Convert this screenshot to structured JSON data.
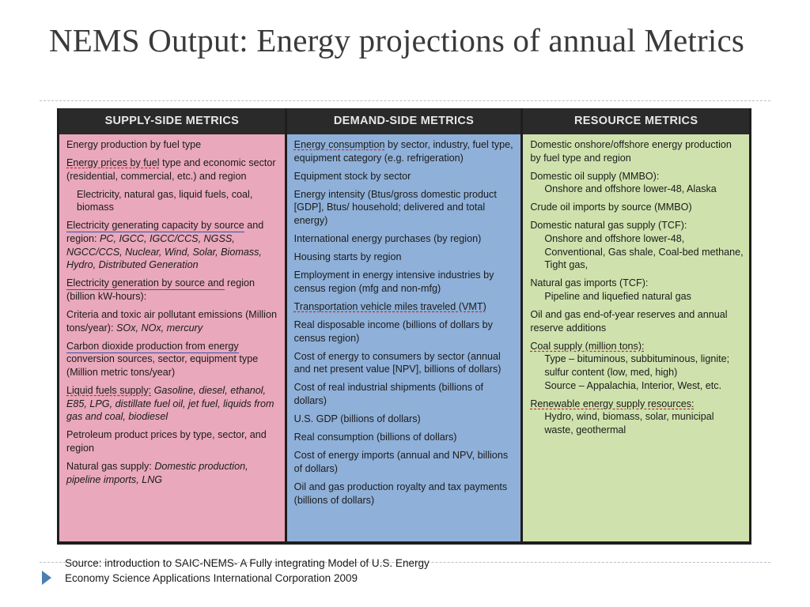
{
  "slide": {
    "title": "NEMS Output: Energy projections of annual Metrics",
    "source_line1": "Source:  introduction to SAIC-NEMS- A Fully integrating Model of U.S. Energy",
    "source_line2": "Economy Science Applications International Corporation 2009"
  },
  "table": {
    "supply": {
      "header": "SUPPLY-SIDE METRICS",
      "items": [
        {
          "text": "Energy production by fuel type"
        },
        {
          "u": "Energy prices by fuel",
          "text": " type and economic sector (residential, commercial, etc.) and region"
        },
        {
          "sub": "Electricity, natural gas, liquid fuels, coal, biomass"
        },
        {
          "u": "Electricity generating capacity by source",
          "text": " and region: ",
          "italic": "PC, IGCC, IGCC/CCS, NGSS, NGCC/CCS, Nuclear, Wind, Solar, Biomass, Hydro, Distributed Generation"
        },
        {
          "u": "Electricity generation by source and",
          "text": " region (billion kW-hours):"
        },
        {
          "text": "Criteria and toxic air pollutant emissions (Million tons/year): ",
          "italic": "SOx, NOx, mercury"
        },
        {
          "u": "Carbon dioxide production from energy",
          "text": " conversion sources, sector, equipment type (Million metric tons/year)"
        },
        {
          "u": "Liquid fuels supply:",
          "text": " ",
          "italic": "Gasoline, diesel, ethanol, E85, LPG, distillate fuel oil, jet fuel, liquids from gas and coal, biodiesel"
        },
        {
          "text": "Petroleum product prices by type, sector, and region"
        },
        {
          "text": "Natural gas supply: ",
          "italic": "Domestic production, pipeline imports, LNG"
        }
      ]
    },
    "demand": {
      "header": "DEMAND-SIDE METRICS",
      "items": [
        {
          "u": "Energy consumption",
          "text": " by sector, industry, fuel type, equipment category (e.g. refrigeration)"
        },
        {
          "text": "Equipment stock by sector"
        },
        {
          "text": "Energy intensity (Btus/gross domestic product [GDP], Btus/ household; delivered and total energy)"
        },
        {
          "text": "International energy purchases (by region)"
        },
        {
          "text": "Housing starts by region"
        },
        {
          "text": "Employment in energy intensive industries by census region (mfg and non-mfg)"
        },
        {
          "u": "Transportation vehicle miles traveled (VMT)"
        },
        {
          "text": "Real disposable income (billions of dollars by census region)"
        },
        {
          "text": "Cost of energy to consumers by sector (annual and net present value [NPV], billions of dollars)"
        },
        {
          "text": "Cost of real industrial shipments (billions of dollars)"
        },
        {
          "text": "U.S. GDP (billions of dollars)"
        },
        {
          "text": "Real consumption (billions of dollars)"
        },
        {
          "text": "Cost of energy imports (annual and NPV, billions of dollars)"
        },
        {
          "text": "Oil and gas production royalty and tax payments (billions of dollars)"
        }
      ]
    },
    "resource": {
      "header": "RESOURCE METRICS",
      "items": [
        {
          "text": "Domestic onshore/offshore energy production by fuel type and region"
        },
        {
          "text": "Domestic oil supply (MMBO):",
          "subs": [
            "Onshore and offshore lower-48, Alaska"
          ]
        },
        {
          "text": "Crude oil imports by source (MMBO)"
        },
        {
          "text": "Domestic natural gas supply (TCF):",
          "subs": [
            "Onshore and offshore lower-48, Conventional, Gas shale, Coal-bed methane, Tight gas,"
          ]
        },
        {
          "text": "Natural gas imports (TCF):",
          "subs": [
            "Pipeline and liquefied natural gas"
          ]
        },
        {
          "text": "Oil and gas end-of-year reserves and annual reserve additions"
        },
        {
          "u": "Coal supply (million tons):",
          "subs": [
            "Type – bituminous, subbituminous, lignite; sulfur content (low, med, high)",
            "Source – Appalachia, Interior, West, etc."
          ]
        },
        {
          "u": "Renewable energy supply resources:",
          "subs": [
            "Hydro, wind, biomass, solar, municipal waste, geothermal"
          ]
        }
      ]
    }
  }
}
